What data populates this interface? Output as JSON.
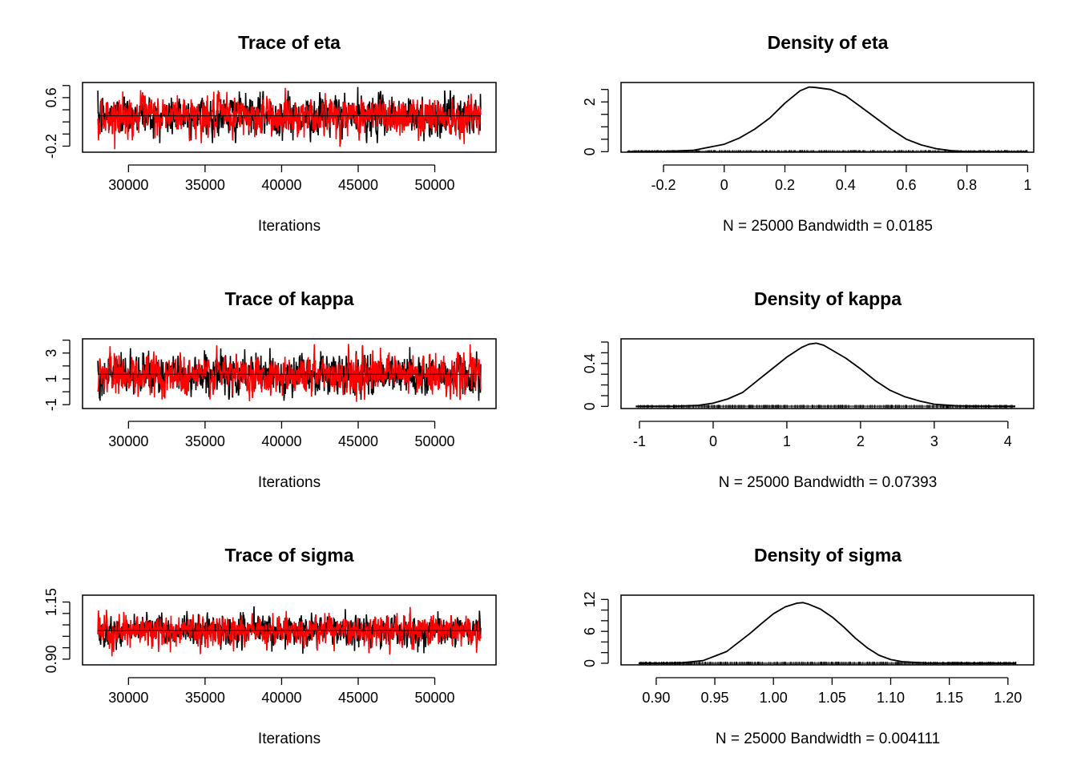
{
  "chart_data": [
    {
      "type": "line",
      "title": "Trace of eta",
      "xlabel": "Iterations",
      "xlim": [
        27000,
        54000
      ],
      "ylim": [
        -0.3,
        0.85
      ],
      "x_ticks": [
        30000,
        35000,
        40000,
        45000,
        50000
      ],
      "y_ticks": [
        -0.2,
        0.6
      ],
      "y_minor_ticks": [
        0.0,
        0.2,
        0.4,
        0.8
      ],
      "x_range": [
        28001,
        53000
      ],
      "series": [
        {
          "color": "#000000",
          "mean": 0.3,
          "sd": 0.15,
          "min": -0.15,
          "max": 0.78
        },
        {
          "color": "#ff0000",
          "mean": 0.3,
          "sd": 0.15,
          "min": -0.25,
          "max": 0.76
        }
      ],
      "reference_line": 0.3
    },
    {
      "type": "line",
      "title": "Density of eta",
      "xlabel": "N = 25000   Bandwidth = 0.0185",
      "xlim": [
        -0.34,
        1.02
      ],
      "ylim": [
        -0.02,
        2.78
      ],
      "x_ticks": [
        -0.2,
        0.0,
        0.2,
        0.4,
        0.6,
        0.8,
        1.0
      ],
      "y_ticks": [
        0.0,
        2.0
      ],
      "y_minor_ticks": [
        0.5,
        1.0,
        1.5,
        2.5
      ],
      "curve": {
        "x": [
          -0.32,
          -0.2,
          -0.1,
          0.0,
          0.05,
          0.1,
          0.15,
          0.2,
          0.25,
          0.28,
          0.3,
          0.35,
          0.4,
          0.45,
          0.5,
          0.55,
          0.6,
          0.65,
          0.7,
          0.75,
          0.8,
          0.9,
          1.0
        ],
        "y": [
          0.0,
          0.01,
          0.06,
          0.3,
          0.55,
          0.9,
          1.35,
          1.95,
          2.45,
          2.6,
          2.58,
          2.5,
          2.25,
          1.8,
          1.35,
          0.9,
          0.5,
          0.27,
          0.12,
          0.04,
          0.01,
          0.0,
          0.0
        ]
      },
      "rug_range": [
        -0.32,
        1.0
      ]
    },
    {
      "type": "line",
      "title": "Trace of kappa",
      "xlabel": "Iterations",
      "xlim": [
        27000,
        54000
      ],
      "ylim": [
        -1.3,
        4.1
      ],
      "x_ticks": [
        30000,
        35000,
        40000,
        45000,
        50000
      ],
      "y_ticks": [
        -1,
        1,
        3
      ],
      "y_minor_ticks": [
        0,
        2,
        4
      ],
      "x_range": [
        28001,
        53000
      ],
      "series": [
        {
          "color": "#000000",
          "mean": 1.35,
          "sd": 0.7,
          "min": -0.7,
          "max": 3.85
        },
        {
          "color": "#ff0000",
          "mean": 1.35,
          "sd": 0.7,
          "min": -0.9,
          "max": 3.7
        }
      ],
      "reference_line": 1.35
    },
    {
      "type": "line",
      "title": "Density of kappa",
      "xlabel": "N = 25000   Bandwidth = 0.07393",
      "xlim": [
        -1.25,
        4.35
      ],
      "ylim": [
        -0.02,
        0.63
      ],
      "x_ticks": [
        -1,
        0,
        1,
        2,
        3,
        4
      ],
      "y_ticks": [
        0.0,
        0.4
      ],
      "y_minor_ticks": [
        0.1,
        0.2,
        0.3,
        0.5,
        0.6
      ],
      "curve": {
        "x": [
          -1.05,
          -0.5,
          -0.2,
          0.0,
          0.2,
          0.4,
          0.6,
          0.8,
          1.0,
          1.2,
          1.3,
          1.4,
          1.5,
          1.6,
          1.8,
          2.0,
          2.2,
          2.4,
          2.6,
          2.8,
          3.0,
          3.3,
          3.6,
          4.1
        ],
        "y": [
          0.0,
          0.002,
          0.01,
          0.03,
          0.07,
          0.13,
          0.24,
          0.35,
          0.46,
          0.55,
          0.58,
          0.59,
          0.57,
          0.53,
          0.45,
          0.35,
          0.24,
          0.15,
          0.09,
          0.05,
          0.02,
          0.006,
          0.002,
          0.0
        ]
      },
      "rug_range": [
        -1.05,
        4.1
      ]
    },
    {
      "type": "line",
      "title": "Trace of sigma",
      "xlabel": "Iterations",
      "xlim": [
        27000,
        54000
      ],
      "ylim": [
        0.875,
        1.18
      ],
      "x_ticks": [
        30000,
        35000,
        40000,
        45000,
        50000
      ],
      "y_ticks": [
        0.9,
        1.15
      ],
      "y_minor_ticks": [
        0.95,
        1.0,
        1.05,
        1.1
      ],
      "y_tick_labels": [
        "0.90",
        "1.15"
      ],
      "x_range": [
        28001,
        53000
      ],
      "series": [
        {
          "color": "#000000",
          "mean": 1.025,
          "sd": 0.03,
          "min": 0.9,
          "max": 1.16
        },
        {
          "color": "#ff0000",
          "mean": 1.025,
          "sd": 0.03,
          "min": 0.89,
          "max": 1.15
        }
      ],
      "reference_line": 1.025
    },
    {
      "type": "line",
      "title": "Density of sigma",
      "xlabel": "N = 25000   Bandwidth = 0.004111",
      "xlim": [
        0.87,
        1.222
      ],
      "ylim": [
        -0.3,
        12.8
      ],
      "x_ticks": [
        0.9,
        0.95,
        1.0,
        1.05,
        1.1,
        1.15,
        1.2
      ],
      "x_tick_labels": [
        "0.90",
        "0.95",
        "1.00",
        "1.05",
        "1.10",
        "1.15",
        "1.20"
      ],
      "y_ticks": [
        0,
        6,
        12
      ],
      "y_minor_ticks": [
        2,
        4,
        8,
        10
      ],
      "curve": {
        "x": [
          0.885,
          0.92,
          0.94,
          0.96,
          0.98,
          0.99,
          1.0,
          1.01,
          1.02,
          1.025,
          1.03,
          1.04,
          1.05,
          1.06,
          1.07,
          1.08,
          1.09,
          1.1,
          1.11,
          1.13,
          1.15,
          1.207
        ],
        "y": [
          0.0,
          0.05,
          0.5,
          2.2,
          5.6,
          7.5,
          9.3,
          10.6,
          11.3,
          11.4,
          11.1,
          10.2,
          8.7,
          6.8,
          4.7,
          2.9,
          1.5,
          0.7,
          0.3,
          0.05,
          0.01,
          0.0
        ]
      },
      "rug_range": [
        0.885,
        1.207
      ]
    }
  ]
}
